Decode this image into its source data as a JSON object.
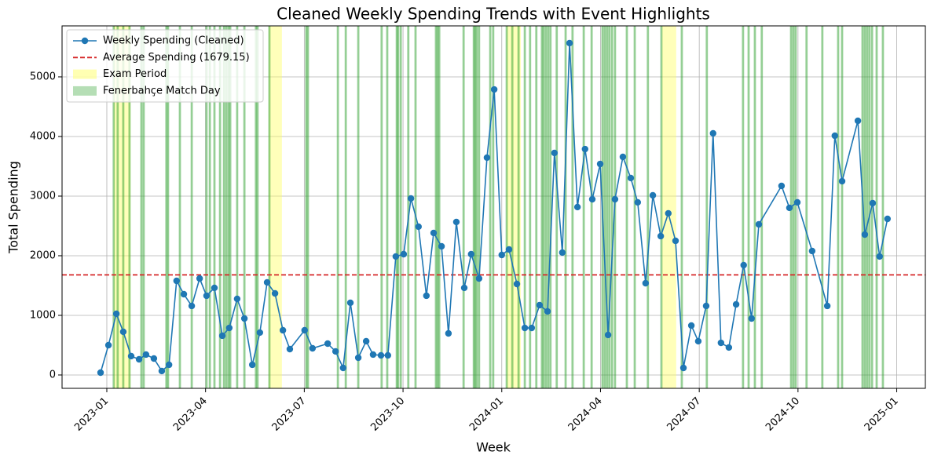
{
  "chart_data": {
    "type": "line",
    "title": "Cleaned Weekly Spending Trends with Event Highlights",
    "xlabel": "Week",
    "ylabel": "Total Spending",
    "x": [
      -0.19,
      0.05,
      0.29,
      0.5,
      0.74,
      0.98,
      1.19,
      1.43,
      1.67,
      1.89,
      2.12,
      2.34,
      2.58,
      2.82,
      3.03,
      3.27,
      3.51,
      3.72,
      3.96,
      4.18,
      4.42,
      4.65,
      4.87,
      5.11,
      5.35,
      5.56,
      6.01,
      6.25,
      6.71,
      6.95,
      7.18,
      7.4,
      7.64,
      7.88,
      8.09,
      8.33,
      8.54,
      8.78,
      9.02,
      9.24,
      9.47,
      9.71,
      9.93,
      10.17,
      10.38,
      10.62,
      10.86,
      11.07,
      11.31,
      11.55,
      11.77,
      12.0,
      12.22,
      12.46,
      12.7,
      12.91,
      13.15,
      13.39,
      13.6,
      13.84,
      14.06,
      14.3,
      14.53,
      14.75,
      14.99,
      15.23,
      15.44,
      15.68,
      15.92,
      16.13,
      16.37,
      16.59,
      16.83,
      17.06,
      17.28,
      17.52,
      17.76,
      17.97,
      18.21,
      18.42,
      18.66,
      18.9,
      19.12,
      19.35,
      19.59,
      19.81,
      20.5,
      20.74,
      20.98,
      21.43,
      21.89,
      22.12,
      22.34,
      22.82,
      23.03,
      23.27,
      23.48,
      23.72
    ],
    "series": [
      {
        "name": "Weekly Spending (Cleaned)",
        "color": "#1f77b4",
        "values": [
          39,
          500,
          1026,
          724,
          316,
          263,
          342,
          276,
          66,
          171,
          1579,
          1355,
          1158,
          1618,
          1329,
          1461,
          658,
          789,
          1276,
          947,
          171,
          711,
          1553,
          1368,
          750,
          434,
          750,
          447,
          526,
          395,
          118,
          1211,
          289,
          566,
          342,
          329,
          329,
          1987,
          2026,
          2961,
          2487,
          1329,
          2382,
          2158,
          697,
          2566,
          1461,
          2026,
          1618,
          3645,
          4789,
          2013,
          2105,
          1526,
          789,
          789,
          1171,
          1066,
          3724,
          2053,
          5566,
          2816,
          3789,
          2947,
          3539,
          671,
          2947,
          3658,
          3303,
          2895,
          1539,
          3013,
          2329,
          2711,
          2250,
          118,
          829,
          566,
          1158,
          4053,
          539,
          461,
          1184,
          1842,
          947,
          2526,
          3171,
          2803,
          2895,
          2079,
          1158,
          4013,
          3250,
          4263,
          2355,
          2882,
          1987,
          2618
        ]
      }
    ],
    "average": {
      "name": "Average Spending (1679.15)",
      "value": 1679.15,
      "color": "#d62728"
    },
    "spans": {
      "name": "Exam Period",
      "color": "#ffff66",
      "ranges": [
        [
          0.21,
          0.72
        ],
        [
          4.92,
          5.32
        ],
        [
          12.15,
          12.58
        ],
        [
          16.87,
          17.3
        ]
      ]
    },
    "events": {
      "name": "Fenerbahçe Match Day",
      "color": "#2ca02c",
      "x": [
        0.21,
        0.33,
        0.5,
        0.69,
        1.05,
        1.12,
        1.81,
        1.86,
        2.22,
        2.58,
        3.03,
        3.13,
        3.27,
        3.44,
        3.56,
        3.63,
        3.7,
        3.75,
        3.96,
        4.18,
        4.53,
        4.58,
        4.94,
        6.06,
        6.11,
        7.02,
        7.26,
        7.64,
        8.35,
        8.52,
        8.81,
        8.85,
        8.93,
        9.16,
        9.38,
        10.0,
        10.05,
        10.1,
        10.84,
        11.15,
        11.19,
        11.24,
        11.31,
        11.65,
        11.74,
        12.15,
        12.32,
        12.51,
        12.7,
        12.86,
        13.05,
        13.22,
        13.27,
        13.34,
        13.41,
        13.48,
        13.67,
        13.94,
        14.15,
        14.49,
        14.73,
        15.06,
        15.13,
        15.2,
        15.27,
        15.35,
        15.44,
        15.8,
        16.04,
        16.44,
        16.85,
        17.47,
        18.23,
        19.33,
        19.5,
        19.69,
        19.9,
        20.79,
        20.86,
        20.93,
        21.26,
        21.74,
        22.22,
        22.34,
        22.96,
        23.03,
        23.1,
        23.17,
        23.25,
        23.39,
        23.58
      ]
    },
    "xlim": [
      -1.36,
      24.87
    ],
    "ylim": [
      -224,
      5855
    ],
    "xticks": [
      {
        "value": 0,
        "label": "2023-01"
      },
      {
        "value": 3,
        "label": "2023-04"
      },
      {
        "value": 6,
        "label": "2023-07"
      },
      {
        "value": 9,
        "label": "2023-10"
      },
      {
        "value": 12,
        "label": "2024-01"
      },
      {
        "value": 15,
        "label": "2024-04"
      },
      {
        "value": 18,
        "label": "2024-07"
      },
      {
        "value": 21,
        "label": "2024-10"
      },
      {
        "value": 24,
        "label": "2025-01"
      }
    ],
    "yticks": [
      0,
      1000,
      2000,
      3000,
      4000,
      5000
    ],
    "grid": true,
    "legend": "upper-left"
  }
}
